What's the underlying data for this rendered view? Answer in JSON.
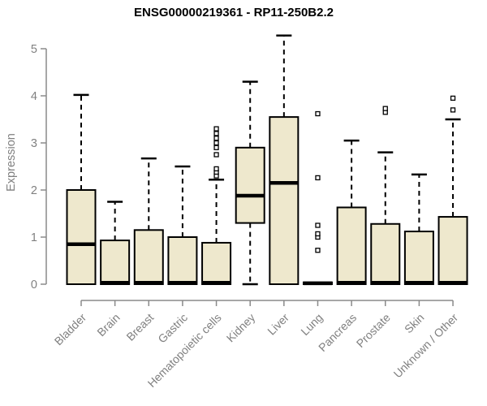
{
  "title": "ENSG00000219361 - RP11-250B2.2",
  "colors": {
    "background": "#FFFFFF",
    "box_fill": "#EEE8CD",
    "box_stroke": "#000000",
    "median": "#000000",
    "whisker": "#000000",
    "outlier_stroke": "#000000",
    "outlier_fill": "#FFFFFF",
    "axis": "#8A8A8A",
    "tick_label": "#808080",
    "title": "#000000"
  },
  "chart_data": {
    "type": "boxplot",
    "title": "ENSG00000219361 - RP11-250B2.2",
    "xlabel": "",
    "ylabel": "Expression",
    "ylim": [
      0,
      5
    ],
    "yticks": [
      0,
      1,
      2,
      3,
      4,
      5
    ],
    "grid": false,
    "legend": false,
    "categories": [
      "Bladder",
      "Brain",
      "Breast",
      "Gastric",
      "Hematopoietic cells",
      "Kidney",
      "Liver",
      "Lung",
      "Pancreas",
      "Prostate",
      "Skin",
      "Unknown / Other"
    ],
    "boxes": [
      {
        "category": "Bladder",
        "whisker_low": 0,
        "q1": 0,
        "median": 0.85,
        "q3": 2.0,
        "whisker_high": 4.02,
        "outliers": []
      },
      {
        "category": "Brain",
        "whisker_low": 0,
        "q1": 0,
        "median": 0.03,
        "q3": 0.93,
        "whisker_high": 1.75,
        "outliers": []
      },
      {
        "category": "Breast",
        "whisker_low": 0,
        "q1": 0,
        "median": 0.03,
        "q3": 1.15,
        "whisker_high": 2.67,
        "outliers": []
      },
      {
        "category": "Gastric",
        "whisker_low": 0,
        "q1": 0,
        "median": 0.03,
        "q3": 1.0,
        "whisker_high": 2.5,
        "outliers": []
      },
      {
        "category": "Hematopoietic cells",
        "whisker_low": 0,
        "q1": 0,
        "median": 0.03,
        "q3": 0.88,
        "whisker_high": 2.22,
        "outliers": [
          2.3,
          2.38,
          2.45,
          2.75,
          2.9,
          3.0,
          3.1,
          3.2,
          3.3
        ]
      },
      {
        "category": "Kidney",
        "whisker_low": 0,
        "q1": 1.3,
        "median": 1.88,
        "q3": 2.9,
        "whisker_high": 4.3,
        "outliers": []
      },
      {
        "category": "Liver",
        "whisker_low": 0,
        "q1": 0,
        "median": 2.15,
        "q3": 3.55,
        "whisker_high": 5.28,
        "outliers": []
      },
      {
        "category": "Lung",
        "whisker_low": 0,
        "q1": 0,
        "median": 0.02,
        "q3": 0.04,
        "whisker_high": 0.04,
        "outliers": [
          0.72,
          1.0,
          1.07,
          1.25,
          2.26,
          3.62
        ]
      },
      {
        "category": "Pancreas",
        "whisker_low": 0,
        "q1": 0,
        "median": 0.03,
        "q3": 1.63,
        "whisker_high": 3.05,
        "outliers": []
      },
      {
        "category": "Prostate",
        "whisker_low": 0,
        "q1": 0,
        "median": 0.03,
        "q3": 1.28,
        "whisker_high": 2.8,
        "outliers": [
          3.65,
          3.73
        ]
      },
      {
        "category": "Skin",
        "whisker_low": 0,
        "q1": 0,
        "median": 0.03,
        "q3": 1.12,
        "whisker_high": 2.33,
        "outliers": []
      },
      {
        "category": "Unknown / Other",
        "whisker_low": 0,
        "q1": 0,
        "median": 0.03,
        "q3": 1.43,
        "whisker_high": 3.5,
        "outliers": [
          3.7,
          3.95
        ]
      }
    ]
  }
}
